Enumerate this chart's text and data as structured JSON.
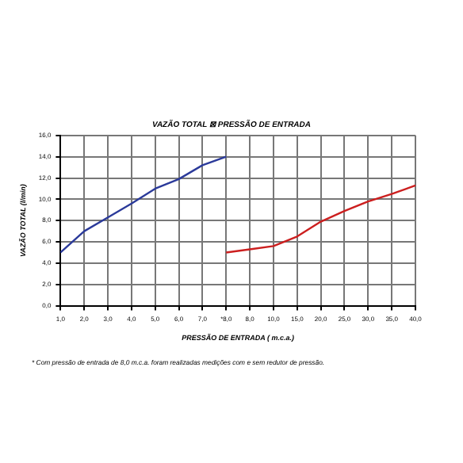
{
  "chart_data": {
    "type": "line",
    "title": "VAZÃO TOTAL ⊠ PRESSÃO DE ENTRADA",
    "xlabel": "PRESSÃO DE ENTRADA ( m.c.a.)",
    "ylabel": "VAZÃO TOTAL (l/min)",
    "categories": [
      "1,0",
      "2,0",
      "3,0",
      "4,0",
      "5,0",
      "6,0",
      "7,0",
      "*8,0",
      "8,0",
      "10,0",
      "15,0",
      "20,0",
      "25,0",
      "30,0",
      "35,0",
      "40,0"
    ],
    "series": [
      {
        "color": "#2b3a9a",
        "values": [
          5.0,
          7.0,
          8.3,
          9.6,
          11.0,
          11.9,
          13.2,
          14.0,
          null,
          null,
          null,
          null,
          null,
          null,
          null,
          null
        ]
      },
      {
        "color": "#cc1f1f",
        "values": [
          null,
          null,
          null,
          null,
          null,
          null,
          null,
          5.0,
          5.3,
          5.6,
          6.5,
          7.9,
          8.9,
          9.8,
          10.5,
          11.3
        ]
      }
    ],
    "ylim": [
      0,
      16
    ],
    "yticks": [
      {
        "value": 0,
        "label": "0,0"
      },
      {
        "value": 2,
        "label": "2,0"
      },
      {
        "value": 4,
        "label": "4,0"
      },
      {
        "value": 6,
        "label": "6,0"
      },
      {
        "value": 8,
        "label": "8,0"
      },
      {
        "value": 10,
        "label": "10,0"
      },
      {
        "value": 12,
        "label": "12,0"
      },
      {
        "value": 14,
        "label": "14,0"
      },
      {
        "value": 16,
        "label": "16,0"
      }
    ],
    "grid": true,
    "line_style": "solid",
    "marker": "none",
    "annotations": [
      "* Com pressão de entrada de 8,0 m.c.a. foram realizadas medições com e sem redutor de pressão."
    ]
  }
}
